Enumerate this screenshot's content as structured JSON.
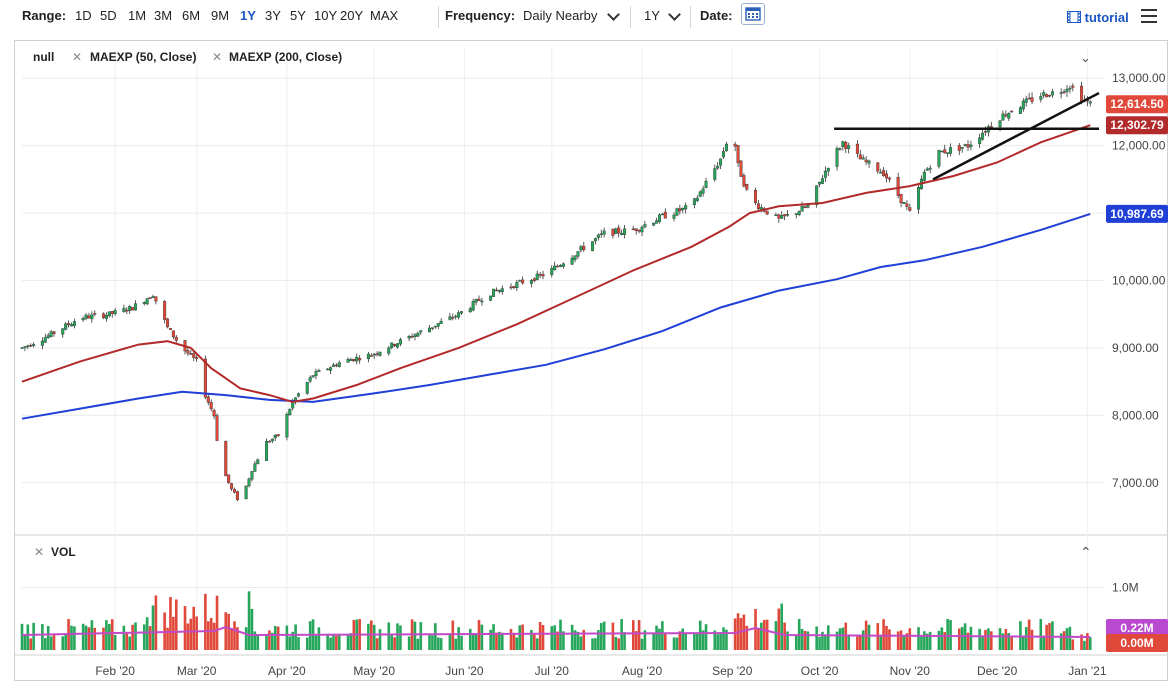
{
  "toolbar": {
    "range_label": "Range:",
    "ranges": [
      "1D",
      "5D",
      "1M",
      "3M",
      "6M",
      "9M",
      "1Y",
      "3Y",
      "5Y",
      "10Y",
      "20Y",
      "MAX"
    ],
    "active_range": "1Y",
    "frequency_label": "Frequency:",
    "frequency_value": "Daily Nearby",
    "period_value": "1Y",
    "date_label": "Date:",
    "tutorial_label": "tutorial"
  },
  "legend": {
    "symbol": "null",
    "ma1": "MAEXP (50, Close)",
    "ma2": "MAEXP (200, Close)",
    "vol": "VOL"
  },
  "colors": {
    "up": "#26a65b",
    "down": "#e0483a",
    "ma50": "#b22a2a",
    "ma200": "#1f3fd6",
    "vol_ma": "#c24ac7",
    "price_badge": "#e0483a",
    "ma50_badge": "#b22a2a",
    "ma200_badge": "#1f3fd6",
    "vol_badge1": "#b94ad0",
    "vol_badge2": "#e0483a"
  },
  "chart_data": {
    "type": "line",
    "price_axis": {
      "ylim": [
        6300,
        13300
      ],
      "ticks": [
        "13,000.00",
        "12,000.00",
        "11,000.00",
        "10,000.00",
        "9,000.00",
        "8,000.00",
        "7,000.00"
      ],
      "tick_values": [
        13000,
        12000,
        11000,
        10000,
        9000,
        8000,
        7000
      ]
    },
    "volume_axis": {
      "ylim": [
        0,
        1600000
      ],
      "ticks": [
        "1.0M"
      ],
      "tick_values": [
        1000000
      ]
    },
    "x_labels": [
      "Feb '20",
      "Mar '20",
      "Apr '20",
      "May '20",
      "Jun '20",
      "Jul '20",
      "Aug '20",
      "Sep '20",
      "Oct '20",
      "Nov '20",
      "Dec '20",
      "Jan '21"
    ],
    "x_label_days": [
      32,
      60,
      91,
      121,
      152,
      182,
      213,
      244,
      274,
      305,
      335,
      366
    ],
    "day_range": [
      0,
      370
    ],
    "price_anchors": [
      [
        0,
        9000
      ],
      [
        10,
        9200
      ],
      [
        20,
        9450
      ],
      [
        30,
        9500
      ],
      [
        38,
        9600
      ],
      [
        45,
        9800
      ],
      [
        50,
        9300
      ],
      [
        55,
        9000
      ],
      [
        60,
        8800
      ],
      [
        63,
        8300
      ],
      [
        66,
        8000
      ],
      [
        68,
        7300
      ],
      [
        72,
        6900
      ],
      [
        75,
        6700
      ],
      [
        79,
        7200
      ],
      [
        84,
        7600
      ],
      [
        88,
        7700
      ],
      [
        93,
        8200
      ],
      [
        100,
        8600
      ],
      [
        110,
        8800
      ],
      [
        120,
        8900
      ],
      [
        130,
        9100
      ],
      [
        140,
        9300
      ],
      [
        150,
        9500
      ],
      [
        160,
        9800
      ],
      [
        170,
        9950
      ],
      [
        180,
        10100
      ],
      [
        190,
        10400
      ],
      [
        200,
        10700
      ],
      [
        210,
        10750
      ],
      [
        220,
        10950
      ],
      [
        230,
        11100
      ],
      [
        240,
        11800
      ],
      [
        244,
        12300
      ],
      [
        246,
        11700
      ],
      [
        250,
        11200
      ],
      [
        260,
        10900
      ],
      [
        270,
        11100
      ],
      [
        278,
        11800
      ],
      [
        282,
        12050
      ],
      [
        288,
        11800
      ],
      [
        296,
        11600
      ],
      [
        302,
        11200
      ],
      [
        305,
        11000
      ],
      [
        310,
        11600
      ],
      [
        315,
        11900
      ],
      [
        325,
        12000
      ],
      [
        335,
        12400
      ],
      [
        343,
        12600
      ],
      [
        350,
        12750
      ],
      [
        356,
        12800
      ],
      [
        360,
        12900
      ],
      [
        364,
        12700
      ],
      [
        367,
        12614.5
      ]
    ],
    "ma50_anchors": [
      [
        0,
        8500
      ],
      [
        20,
        8800
      ],
      [
        40,
        9050
      ],
      [
        50,
        9100
      ],
      [
        58,
        9000
      ],
      [
        65,
        8700
      ],
      [
        75,
        8400
      ],
      [
        85,
        8300
      ],
      [
        93,
        8200
      ],
      [
        100,
        8250
      ],
      [
        115,
        8450
      ],
      [
        130,
        8700
      ],
      [
        150,
        9000
      ],
      [
        170,
        9350
      ],
      [
        190,
        9750
      ],
      [
        210,
        10150
      ],
      [
        230,
        10500
      ],
      [
        243,
        10800
      ],
      [
        250,
        11000
      ],
      [
        260,
        11100
      ],
      [
        275,
        11150
      ],
      [
        290,
        11300
      ],
      [
        305,
        11400
      ],
      [
        320,
        11550
      ],
      [
        335,
        11750
      ],
      [
        350,
        12050
      ],
      [
        367,
        12302.79
      ]
    ],
    "ma200_anchors": [
      [
        0,
        7950
      ],
      [
        20,
        8100
      ],
      [
        40,
        8250
      ],
      [
        55,
        8350
      ],
      [
        70,
        8300
      ],
      [
        85,
        8230
      ],
      [
        100,
        8200
      ],
      [
        120,
        8320
      ],
      [
        140,
        8450
      ],
      [
        160,
        8600
      ],
      [
        180,
        8750
      ],
      [
        200,
        8980
      ],
      [
        220,
        9250
      ],
      [
        240,
        9600
      ],
      [
        260,
        9850
      ],
      [
        280,
        10020
      ],
      [
        295,
        10200
      ],
      [
        310,
        10300
      ],
      [
        330,
        10500
      ],
      [
        350,
        10750
      ],
      [
        367,
        10987.69
      ]
    ],
    "vol_ma_level": 240000,
    "trendlines": [
      {
        "from": [
          279,
          12250
        ],
        "to": [
          370,
          12250
        ]
      },
      {
        "from": [
          313,
          11500
        ],
        "to": [
          370,
          12780
        ]
      }
    ],
    "badges": [
      {
        "value": 12614.5,
        "text": "12,614.50",
        "kind": "price"
      },
      {
        "value": 12302.79,
        "text": "12,302.79",
        "kind": "ma50"
      },
      {
        "value": 10987.69,
        "text": "10,987.69",
        "kind": "ma200"
      }
    ],
    "volume_badges": [
      {
        "value": 220000,
        "text": "0.22M",
        "kind": "vol_ma"
      },
      {
        "value": 0,
        "text": "0.00M",
        "kind": "vol_last"
      }
    ]
  }
}
